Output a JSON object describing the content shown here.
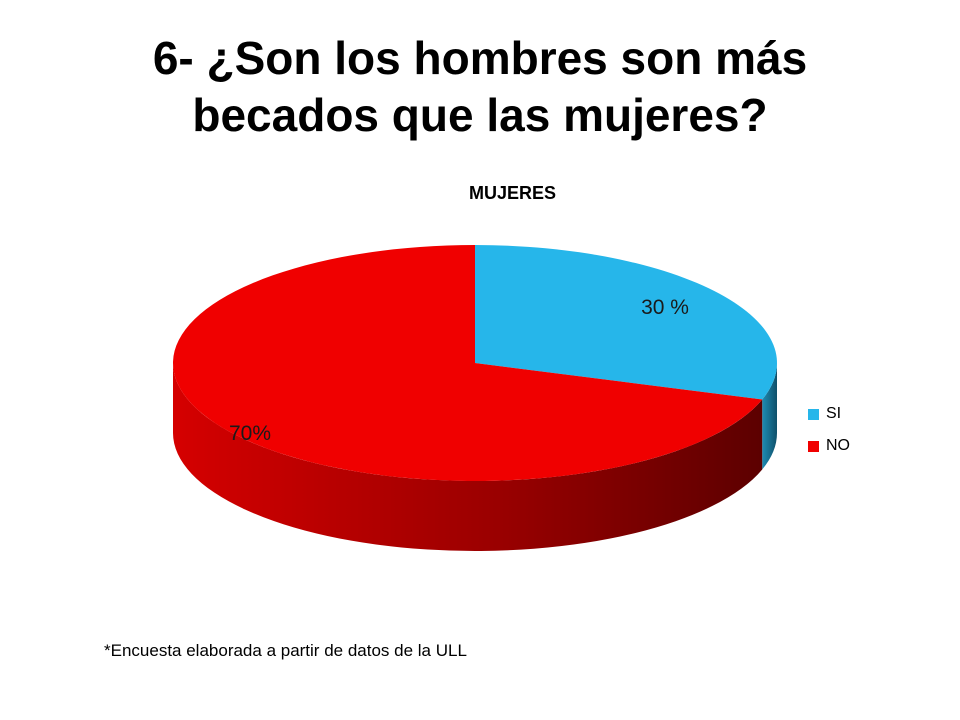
{
  "slide": {
    "title_line1": "6- ¿Son los hombres son más",
    "title_line2": "becados que las mujeres?",
    "footnote": "*Encuesta elaborada  a partir de datos de la ULL"
  },
  "chart_data": {
    "type": "pie",
    "title": "MUJERES",
    "categories": [
      "SI",
      "NO"
    ],
    "values": [
      30,
      70
    ],
    "data_labels": [
      "30 %",
      "70%"
    ],
    "colors": [
      "#26b6ea",
      "#f00000"
    ],
    "style": "3d",
    "legend_position": "right"
  }
}
